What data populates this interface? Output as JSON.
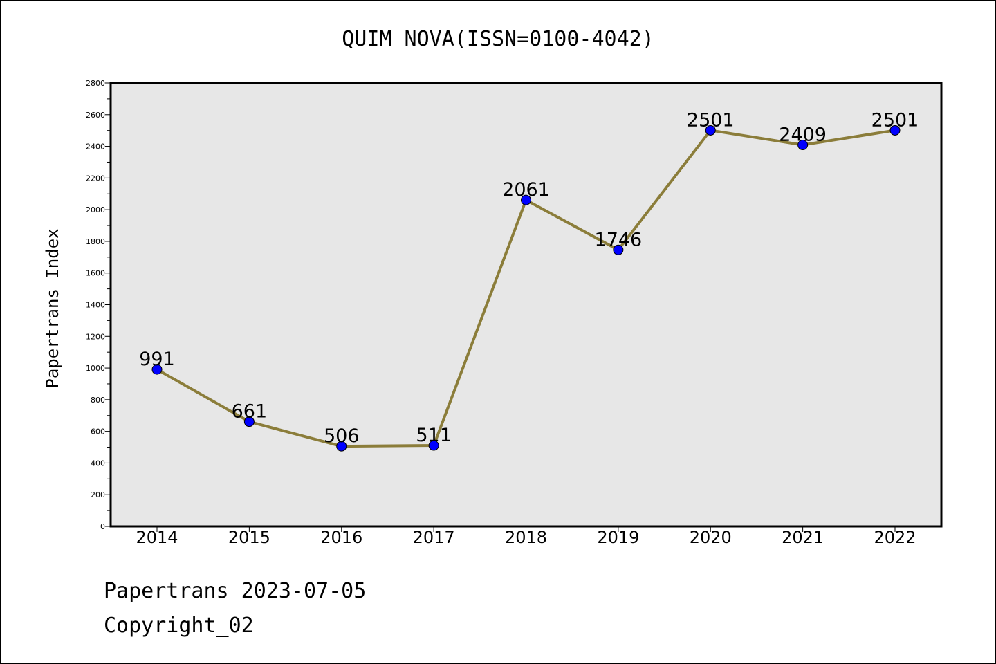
{
  "chart_data": {
    "type": "line",
    "title": "QUIM NOVA(ISSN=0100-4042)",
    "xlabel": "",
    "ylabel": "Papertrans Index",
    "categories": [
      "2014",
      "2015",
      "2016",
      "2017",
      "2018",
      "2019",
      "2020",
      "2021",
      "2022"
    ],
    "series": [
      {
        "values": [
          991,
          661,
          506,
          511,
          2061,
          1746,
          2501,
          2409,
          2501
        ]
      }
    ],
    "ylim": [
      0,
      2800
    ],
    "yticks": [
      0,
      200,
      400,
      600,
      800,
      1000,
      1200,
      1400,
      1600,
      1800,
      2000,
      2200,
      2400,
      2600,
      2800
    ],
    "grid": false,
    "legend": "none",
    "colors": {
      "line": "#8b7d3a",
      "marker": "#0000ff",
      "plot_background": "#e7e7e7"
    }
  },
  "footer": {
    "line1": "Papertrans 2023-07-05",
    "line2": "Copyright_02"
  }
}
